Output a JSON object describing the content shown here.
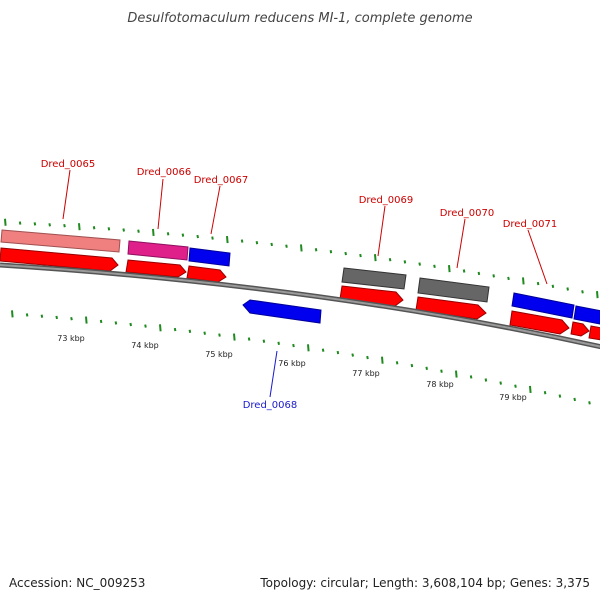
{
  "title": "Desulfotomaculum reducens MI-1, complete genome",
  "footer": {
    "accession": "Accession: NC_009253",
    "summary": "Topology: circular; Length: 3,608,104 bp; Genes: 3,375"
  },
  "colors": {
    "forward_label": "#cc0000",
    "reverse_label": "#1a1acc",
    "tick": "#1f8a1f",
    "backbone": "#808080",
    "cds_red": "#ff0000",
    "gene_pink": "#f08080",
    "gene_magenta": "#e0208a",
    "gene_blue": "#0000ee",
    "gene_grey": "#666666"
  },
  "gene_labels": [
    {
      "id": "Dred_0065",
      "strand": "forward"
    },
    {
      "id": "Dred_0066",
      "strand": "forward"
    },
    {
      "id": "Dred_0067",
      "strand": "forward"
    },
    {
      "id": "Dred_0068",
      "strand": "reverse"
    },
    {
      "id": "Dred_0069",
      "strand": "forward"
    },
    {
      "id": "Dred_0070",
      "strand": "forward"
    },
    {
      "id": "Dred_0071",
      "strand": "forward"
    }
  ],
  "kbp_ticks": [
    "73 kbp",
    "74 kbp",
    "75 kbp",
    "76 kbp",
    "77 kbp",
    "78 kbp",
    "79 kbp"
  ]
}
